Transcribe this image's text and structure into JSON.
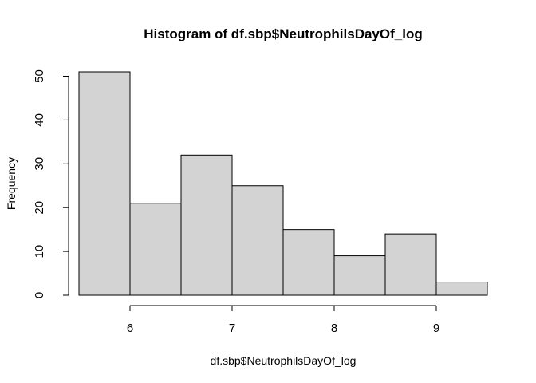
{
  "chart_data": {
    "type": "bar",
    "title": "Histogram of df.sbp$NeutrophilsDayOf_log",
    "xlabel": "df.sbp$NeutrophilsDayOf_log",
    "ylabel": "Frequency",
    "bins": [
      {
        "from": 5.5,
        "to": 6.0,
        "count": 51
      },
      {
        "from": 6.0,
        "to": 6.5,
        "count": 21
      },
      {
        "from": 6.5,
        "to": 7.0,
        "count": 32
      },
      {
        "from": 7.0,
        "to": 7.5,
        "count": 25
      },
      {
        "from": 7.5,
        "to": 8.0,
        "count": 15
      },
      {
        "from": 8.0,
        "to": 8.5,
        "count": 9
      },
      {
        "from": 8.5,
        "to": 9.0,
        "count": 14
      },
      {
        "from": 9.0,
        "to": 9.5,
        "count": 3
      }
    ],
    "x_ticks": [
      "6",
      "7",
      "8",
      "9"
    ],
    "y_ticks": [
      "0",
      "10",
      "20",
      "30",
      "40",
      "50"
    ],
    "xlim": [
      5.5,
      9.5
    ],
    "ylim": [
      0,
      51
    ],
    "bar_fill": "#d3d3d3",
    "grid": false,
    "legend": "none"
  }
}
